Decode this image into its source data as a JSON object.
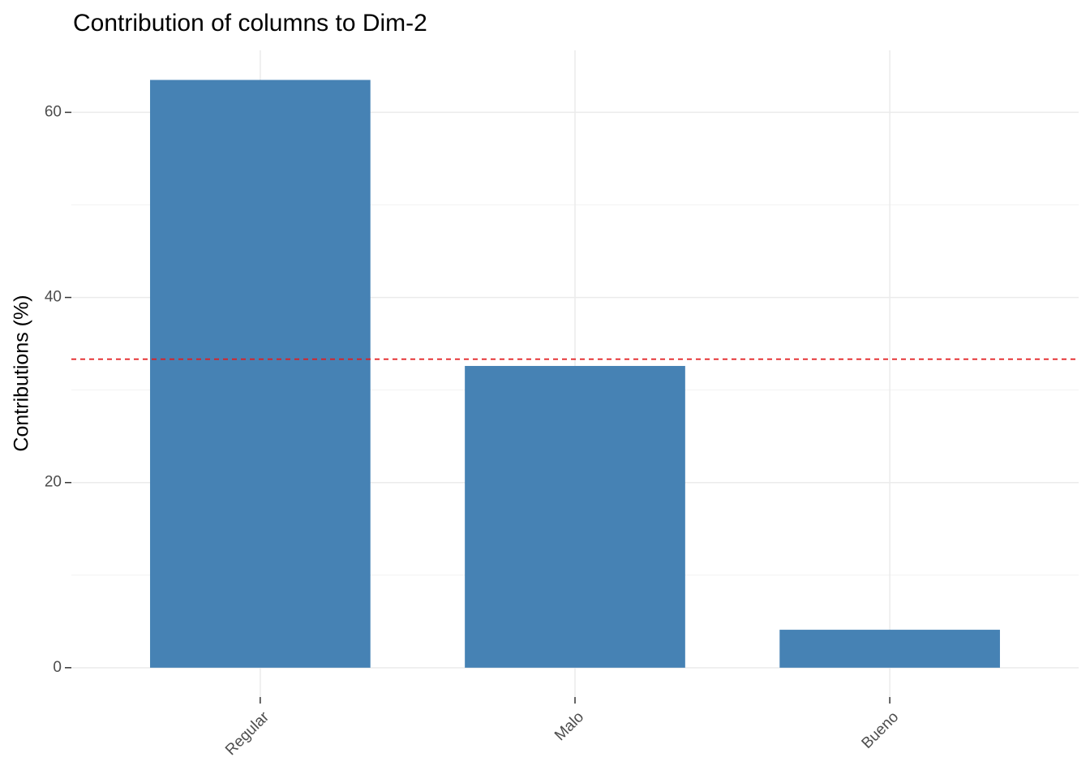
{
  "chart_data": {
    "type": "bar",
    "title": "Contribution of columns to Dim-2",
    "y_label": "Contributions (%)",
    "categories": [
      "Regular",
      "Malo",
      "Bueno"
    ],
    "values": [
      63.5,
      32.6,
      4.1
    ],
    "color": "#4682b4",
    "ylim": [
      -3.17,
      66.7
    ],
    "yticks": [
      0,
      20,
      40,
      60
    ],
    "y_minor_ticks": [
      10,
      30,
      50
    ],
    "grid": true,
    "reference_line": {
      "value": 33.33,
      "color": "#e31a1c",
      "style": "dashed"
    }
  }
}
